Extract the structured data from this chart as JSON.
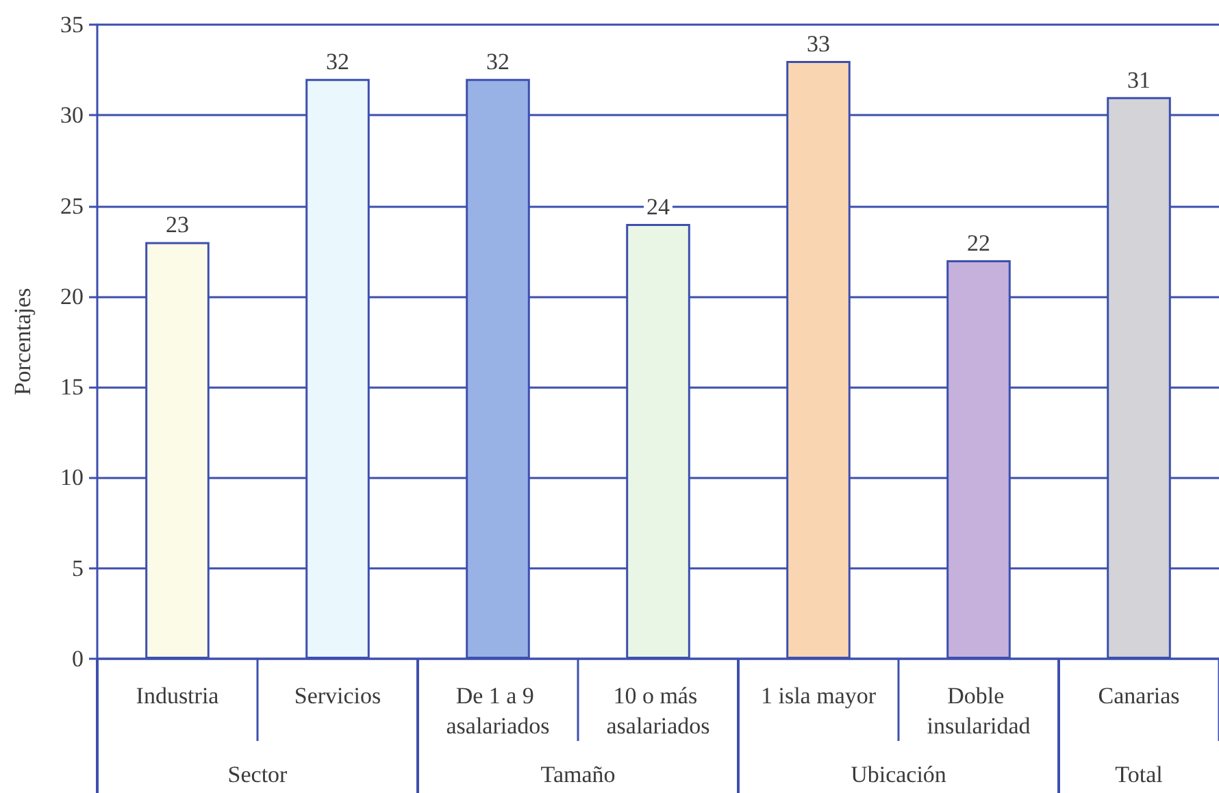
{
  "chart_data": {
    "type": "bar",
    "ylabel": "Porcentajes",
    "categories": [
      "Industria",
      "Servicios",
      "De 1 a 9 asalariados",
      "10 o más asalariados",
      "1 isla mayor",
      "Doble insularidad",
      "Canarias"
    ],
    "values": [
      23,
      32,
      32,
      24,
      33,
      22,
      31
    ],
    "colors": [
      "#fbfbe8",
      "#eaf7fc",
      "#98b2e6",
      "#eaf6e5",
      "#f9d6b1",
      "#c5b1dc",
      "#d3d3d8"
    ],
    "ylim": [
      0,
      35
    ],
    "yticks": [
      0,
      5,
      10,
      15,
      20,
      25,
      30,
      35
    ],
    "grid": "y",
    "data_labels": true,
    "annotations": [
      "Sector",
      "Tamaño",
      "Ubicación",
      "Total"
    ]
  }
}
